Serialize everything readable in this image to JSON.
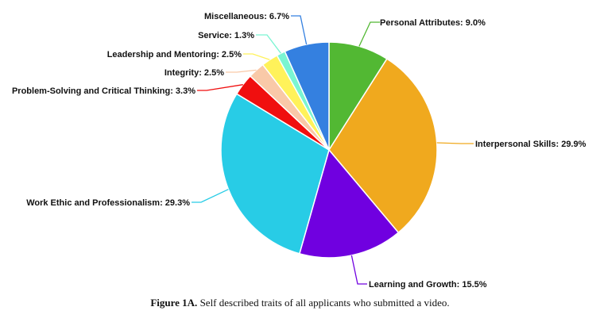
{
  "caption": {
    "figure_label": "Figure 1A.",
    "text": "Self described traits of all applicants who submitted a video."
  },
  "chart_data": {
    "type": "pie",
    "start_angle_deg": 0,
    "direction": "clockwise",
    "slices": [
      {
        "label": "Personal Attributes: 9.0%",
        "value": 9.0,
        "color": "#52B833"
      },
      {
        "label": "Interpersonal Skills: 29.9%",
        "value": 29.9,
        "color": "#F0A91E"
      },
      {
        "label": "Learning and Growth: 15.5%",
        "value": 15.5,
        "color": "#7000E0"
      },
      {
        "label": "Work Ethic and Professionalism: 29.3%",
        "value": 29.3,
        "color": "#28CCE6"
      },
      {
        "label": "Problem-Solving and Critical Thinking: 3.3%",
        "value": 3.3,
        "color": "#F00F0F"
      },
      {
        "label": "Integrity: 2.5%",
        "value": 2.5,
        "color": "#F9C9A8"
      },
      {
        "label": "Leadership and Mentoring: 2.5%",
        "value": 2.5,
        "color": "#FFF25A"
      },
      {
        "label": "Service: 1.3%",
        "value": 1.3,
        "color": "#7AF5D2"
      },
      {
        "label": "Miscellaneous: 6.7%",
        "value": 6.7,
        "color": "#3480E0"
      }
    ]
  }
}
